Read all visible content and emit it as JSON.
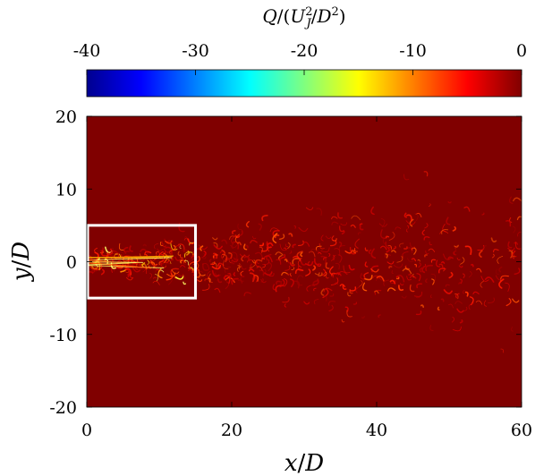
{
  "chart_data": {
    "type": "heatmap",
    "title": "",
    "colorbar": {
      "label_parts": {
        "q": "Q",
        "open": "/(",
        "u": "U",
        "sup": "2",
        "sub": "J",
        "mid": "/",
        "d": "D",
        "sup2": "2",
        "close": ")"
      },
      "range": [
        -40,
        0
      ],
      "ticks": [
        "-40",
        "-30",
        "-20",
        "-10",
        "0"
      ],
      "colormap": "jet",
      "placement": "top"
    },
    "xlabel_parts": {
      "var": "x",
      "slash": "/",
      "den": "D"
    },
    "ylabel_parts": {
      "var": "y",
      "slash": "/",
      "den": "D"
    },
    "xlim": [
      0,
      60
    ],
    "ylim": [
      -20,
      20
    ],
    "xticks": [
      0,
      20,
      40,
      60
    ],
    "yticks": [
      20,
      10,
      0,
      -10,
      -20
    ],
    "field_background_color": "#800000",
    "highlight_box": {
      "x": [
        0,
        15
      ],
      "y": [
        -5,
        5
      ],
      "color": "#ffffff"
    },
    "description_note": "jet centered at y/D=0, intense structures near x/D 0-15, turbulent spreading downstream"
  }
}
